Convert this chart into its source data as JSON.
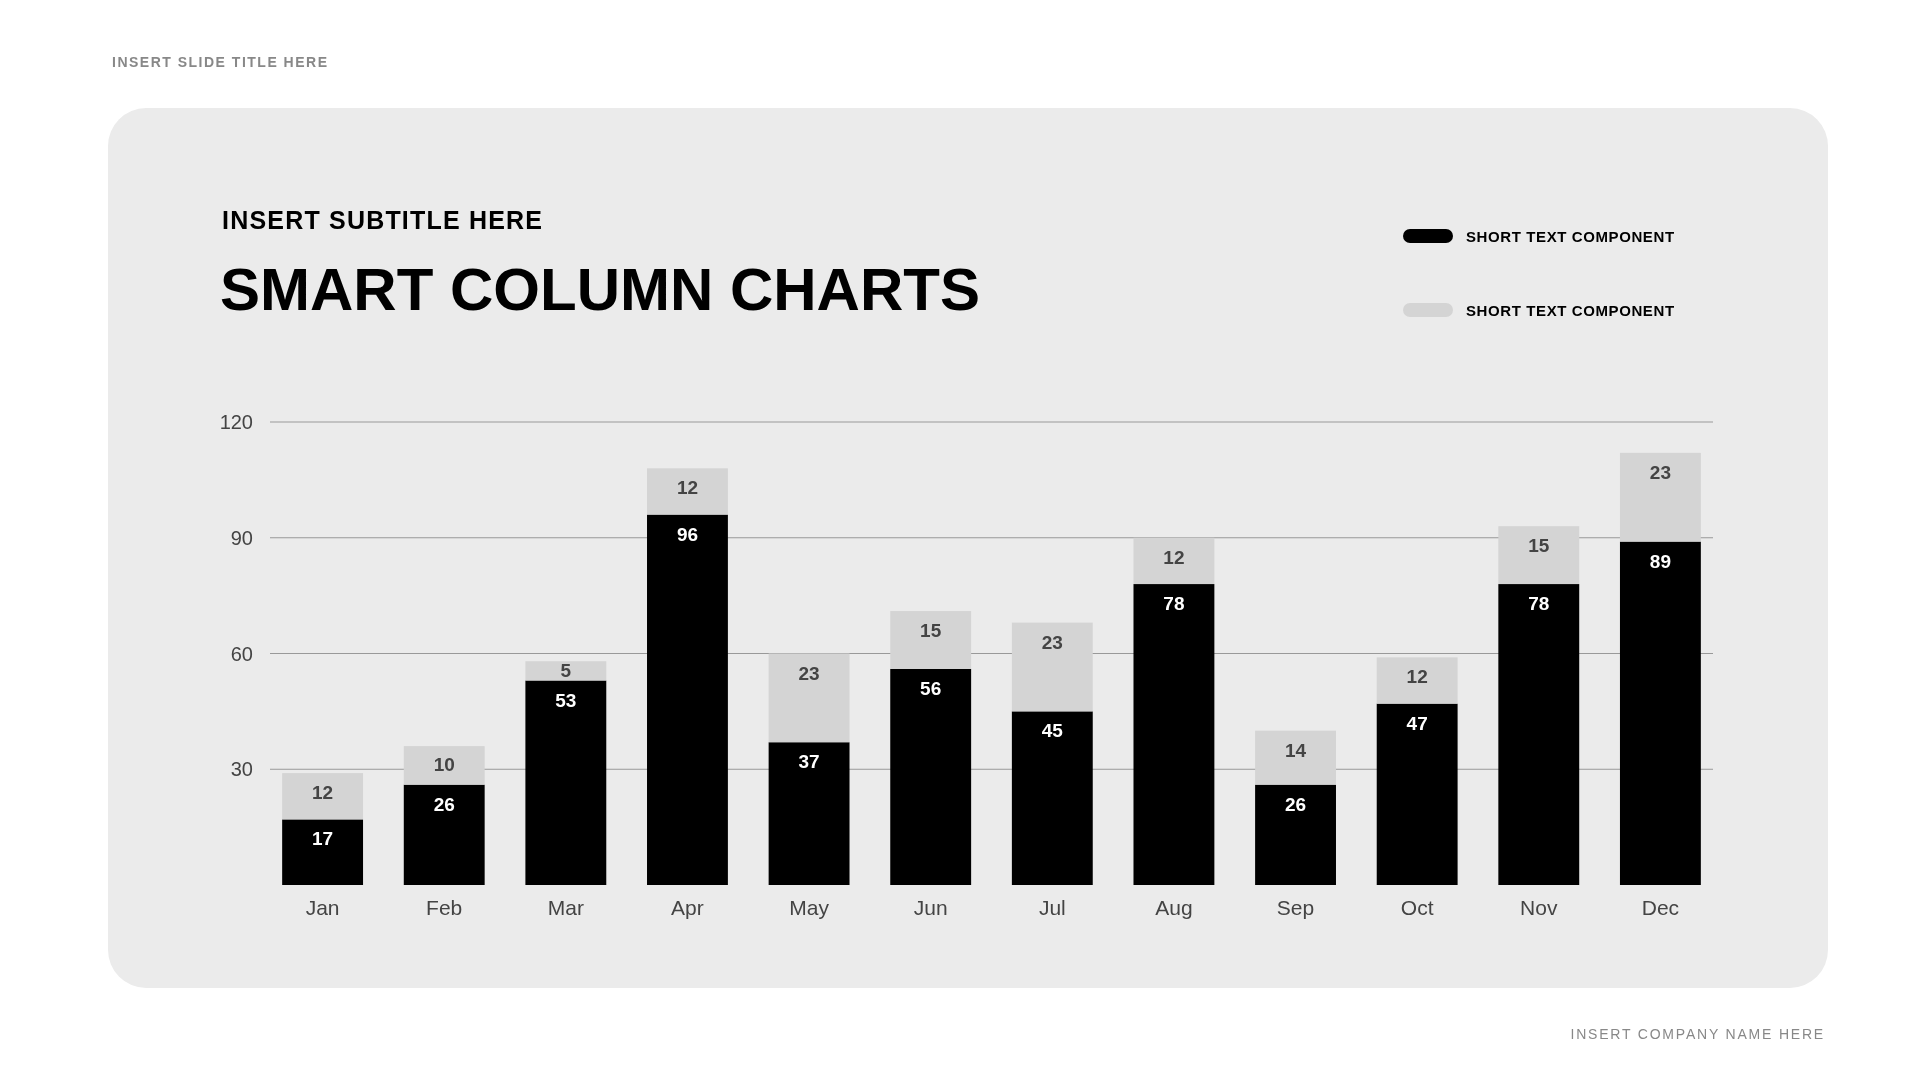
{
  "chart_data": {
    "type": "bar",
    "stacked": true,
    "title": "SMART COLUMN CHARTS",
    "subtitle": "INSERT SUBTITLE HERE",
    "annotations": [
      "INSERT SLIDE TITLE HERE",
      "INSERT COMPANY NAME HERE"
    ],
    "categories": [
      "Jan",
      "Feb",
      "Mar",
      "Apr",
      "May",
      "Jun",
      "Jul",
      "Aug",
      "Sep",
      "Oct",
      "Nov",
      "Dec"
    ],
    "series": [
      {
        "name": "SHORT TEXT COMPONENT",
        "color": "#000000",
        "values": [
          17,
          26,
          53,
          96,
          37,
          56,
          45,
          78,
          26,
          47,
          78,
          89
        ]
      },
      {
        "name": "SHORT TEXT COMPONENT",
        "color": "#d4d4d4",
        "values": [
          12,
          10,
          5,
          12,
          23,
          15,
          23,
          12,
          14,
          12,
          15,
          23
        ]
      }
    ],
    "ylim": [
      0,
      120
    ],
    "yticks": [
      30,
      60,
      90,
      120
    ],
    "grid": "y",
    "legend": "top right",
    "data_labels": true
  }
}
